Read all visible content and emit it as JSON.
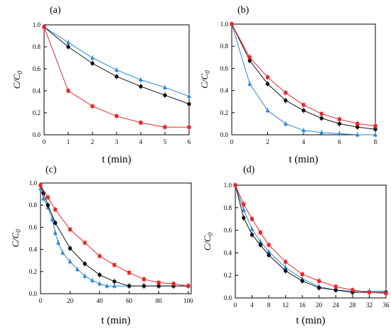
{
  "colors": {
    "red": "#e8272b",
    "black": "#111111",
    "blue": "#2a86d6"
  },
  "chart_data": [
    {
      "type": "line",
      "panel_label": "(a)",
      "xlabel": "t (min)",
      "ylabel": "C/C0",
      "xlim": [
        0,
        6
      ],
      "ylim": [
        0,
        1.0
      ],
      "x_ticks": [
        "0",
        "1",
        "2",
        "3",
        "4",
        "5",
        "6"
      ],
      "y_ticks": [
        "0.0",
        "0.2",
        "0.4",
        "0.6",
        "0.8",
        "1.0"
      ],
      "grid": false,
      "series": [
        {
          "color": "red",
          "marker": "square",
          "x": [
            0,
            1,
            2,
            3,
            4,
            5,
            6
          ],
          "y": [
            0.98,
            0.4,
            0.26,
            0.17,
            0.11,
            0.07,
            0.07
          ]
        },
        {
          "color": "black",
          "marker": "circle",
          "x": [
            0,
            1,
            2,
            3,
            4,
            5,
            6
          ],
          "y": [
            0.98,
            0.8,
            0.65,
            0.53,
            0.44,
            0.36,
            0.28
          ]
        },
        {
          "color": "blue",
          "marker": "triangle",
          "x": [
            0,
            1,
            2,
            3,
            4,
            5,
            6
          ],
          "y": [
            0.98,
            0.84,
            0.7,
            0.59,
            0.5,
            0.43,
            0.35
          ]
        }
      ]
    },
    {
      "type": "line",
      "panel_label": "(b)",
      "xlabel": "t (min)",
      "ylabel": "C/C0",
      "xlim": [
        0,
        8
      ],
      "ylim": [
        0,
        1.0
      ],
      "x_ticks": [
        "0",
        "2",
        "4",
        "6",
        "8"
      ],
      "y_ticks": [
        "0.0",
        "0.2",
        "0.4",
        "0.6",
        "0.8",
        "1.0"
      ],
      "grid": false,
      "series": [
        {
          "color": "red",
          "marker": "square",
          "x": [
            0,
            1,
            2,
            3,
            4,
            5,
            6,
            7,
            8
          ],
          "y": [
            1.0,
            0.7,
            0.52,
            0.38,
            0.27,
            0.19,
            0.14,
            0.1,
            0.08
          ]
        },
        {
          "color": "black",
          "marker": "circle",
          "x": [
            0,
            1,
            2,
            3,
            4,
            5,
            6,
            7,
            8
          ],
          "y": [
            1.0,
            0.67,
            0.46,
            0.31,
            0.22,
            0.15,
            0.1,
            0.07,
            0.05
          ]
        },
        {
          "color": "blue",
          "marker": "triangle",
          "x": [
            0,
            1,
            2,
            3,
            4,
            5,
            6,
            7,
            8
          ],
          "y": [
            1.0,
            0.46,
            0.22,
            0.1,
            0.04,
            0.02,
            0.01,
            0.0,
            0.0
          ]
        }
      ]
    },
    {
      "type": "line",
      "panel_label": "(c)",
      "xlabel": "t (min)",
      "ylabel": "C/C0",
      "xlim": [
        0,
        102
      ],
      "ylim": [
        0,
        1.0
      ],
      "x_ticks": [
        "0",
        "20",
        "40",
        "60",
        "80",
        "100"
      ],
      "y_ticks": [
        "0.0",
        "0.2",
        "0.4",
        "0.6",
        "0.8",
        "1.0"
      ],
      "grid": false,
      "series": [
        {
          "color": "red",
          "marker": "square",
          "x": [
            0,
            5,
            10,
            20,
            30,
            40,
            50,
            60,
            70,
            80,
            90,
            100
          ],
          "y": [
            0.98,
            0.87,
            0.76,
            0.58,
            0.46,
            0.34,
            0.26,
            0.19,
            0.13,
            0.1,
            0.09,
            0.07
          ]
        },
        {
          "color": "black",
          "marker": "circle",
          "x": [
            0,
            2,
            5,
            10,
            20,
            30,
            40,
            50,
            60,
            70,
            80,
            90,
            100
          ],
          "y": [
            0.98,
            0.91,
            0.8,
            0.64,
            0.41,
            0.27,
            0.17,
            0.11,
            0.07,
            0.07,
            0.07,
            0.07,
            0.07
          ]
        },
        {
          "color": "blue",
          "marker": "triangle",
          "x": [
            0,
            2,
            5,
            8,
            10,
            12,
            15,
            20,
            25,
            30,
            35,
            40,
            45,
            50,
            60,
            70,
            80,
            90,
            100
          ],
          "y": [
            0.95,
            0.86,
            0.78,
            0.67,
            0.55,
            0.46,
            0.37,
            0.29,
            0.22,
            0.16,
            0.12,
            0.09,
            0.07,
            0.07,
            0.07,
            0.07,
            0.07,
            0.07,
            0.07
          ]
        }
      ]
    },
    {
      "type": "line",
      "panel_label": "(d)",
      "xlabel": "t (min)",
      "ylabel": "C/C0",
      "xlim": [
        0,
        36
      ],
      "ylim": [
        0,
        1.0
      ],
      "x_ticks": [
        "0",
        "4",
        "8",
        "12",
        "16",
        "20",
        "24",
        "28",
        "32",
        "36"
      ],
      "y_ticks": [
        "0.0",
        "0.2",
        "0.4",
        "0.6",
        "0.8",
        "1.0"
      ],
      "grid": false,
      "series": [
        {
          "color": "red",
          "marker": "square",
          "x": [
            0,
            2,
            4,
            6,
            8,
            12,
            16,
            20,
            24,
            28,
            32,
            36
          ],
          "y": [
            1.0,
            0.83,
            0.7,
            0.58,
            0.47,
            0.32,
            0.21,
            0.15,
            0.1,
            0.07,
            0.05,
            0.04
          ]
        },
        {
          "color": "black",
          "marker": "circle",
          "x": [
            0,
            2,
            4,
            6,
            8,
            12,
            16,
            20,
            24,
            28,
            32,
            36
          ],
          "y": [
            1.0,
            0.71,
            0.56,
            0.47,
            0.38,
            0.24,
            0.15,
            0.09,
            0.07,
            0.05,
            0.05,
            0.05
          ]
        },
        {
          "color": "blue",
          "marker": "triangle",
          "x": [
            0,
            2,
            4,
            6,
            8,
            12,
            16,
            20,
            24,
            28,
            32,
            36
          ],
          "y": [
            1.0,
            0.78,
            0.61,
            0.5,
            0.41,
            0.27,
            0.17,
            0.1,
            0.07,
            0.06,
            0.06,
            0.06
          ]
        }
      ]
    }
  ]
}
